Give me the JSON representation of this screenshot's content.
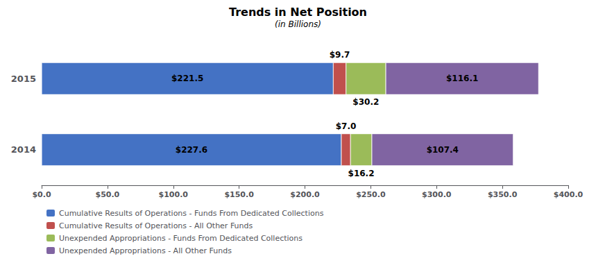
{
  "chart_data": {
    "type": "bar",
    "orientation": "horizontal",
    "stacked": true,
    "data_labels": true,
    "grid": false,
    "legend": "bottom",
    "title": "Trends in Net Position",
    "subtitle": "(in Billions)",
    "categories": [
      "2015",
      "2014"
    ],
    "series": [
      {
        "name": "Cumulative Results of Operations - Funds From Dedicated Collections",
        "color": "#4472C4",
        "values": [
          221.5,
          227.6
        ],
        "value_labels": [
          "$221.5",
          "$227.6"
        ]
      },
      {
        "name": "Cumulative Results of Operations - All Other Funds",
        "color": "#C0504D",
        "values": [
          9.7,
          7.0
        ],
        "value_labels": [
          "$9.7",
          "$7.0"
        ]
      },
      {
        "name": "Unexpended Appropriations - Funds From Dedicated Collections",
        "color": "#9BBB59",
        "values": [
          30.2,
          16.2
        ],
        "value_labels": [
          "$30.2",
          "$16.2"
        ]
      },
      {
        "name": "Unexpended Appropriations - All Other Funds",
        "color": "#8064A2",
        "values": [
          116.1,
          107.4
        ],
        "value_labels": [
          "$116.1",
          "$107.4"
        ]
      }
    ],
    "xlim": [
      0,
      400
    ],
    "xticks": [
      {
        "value": 0,
        "label": "$0.0"
      },
      {
        "value": 50,
        "label": "$50.0"
      },
      {
        "value": 100,
        "label": "$100.0"
      },
      {
        "value": 150,
        "label": "$150.0"
      },
      {
        "value": 200,
        "label": "$200.0"
      },
      {
        "value": 250,
        "label": "$250.0"
      },
      {
        "value": 300,
        "label": "$300.0"
      },
      {
        "value": 350,
        "label": "$350.0"
      },
      {
        "value": 400,
        "label": "$400.0"
      }
    ]
  }
}
